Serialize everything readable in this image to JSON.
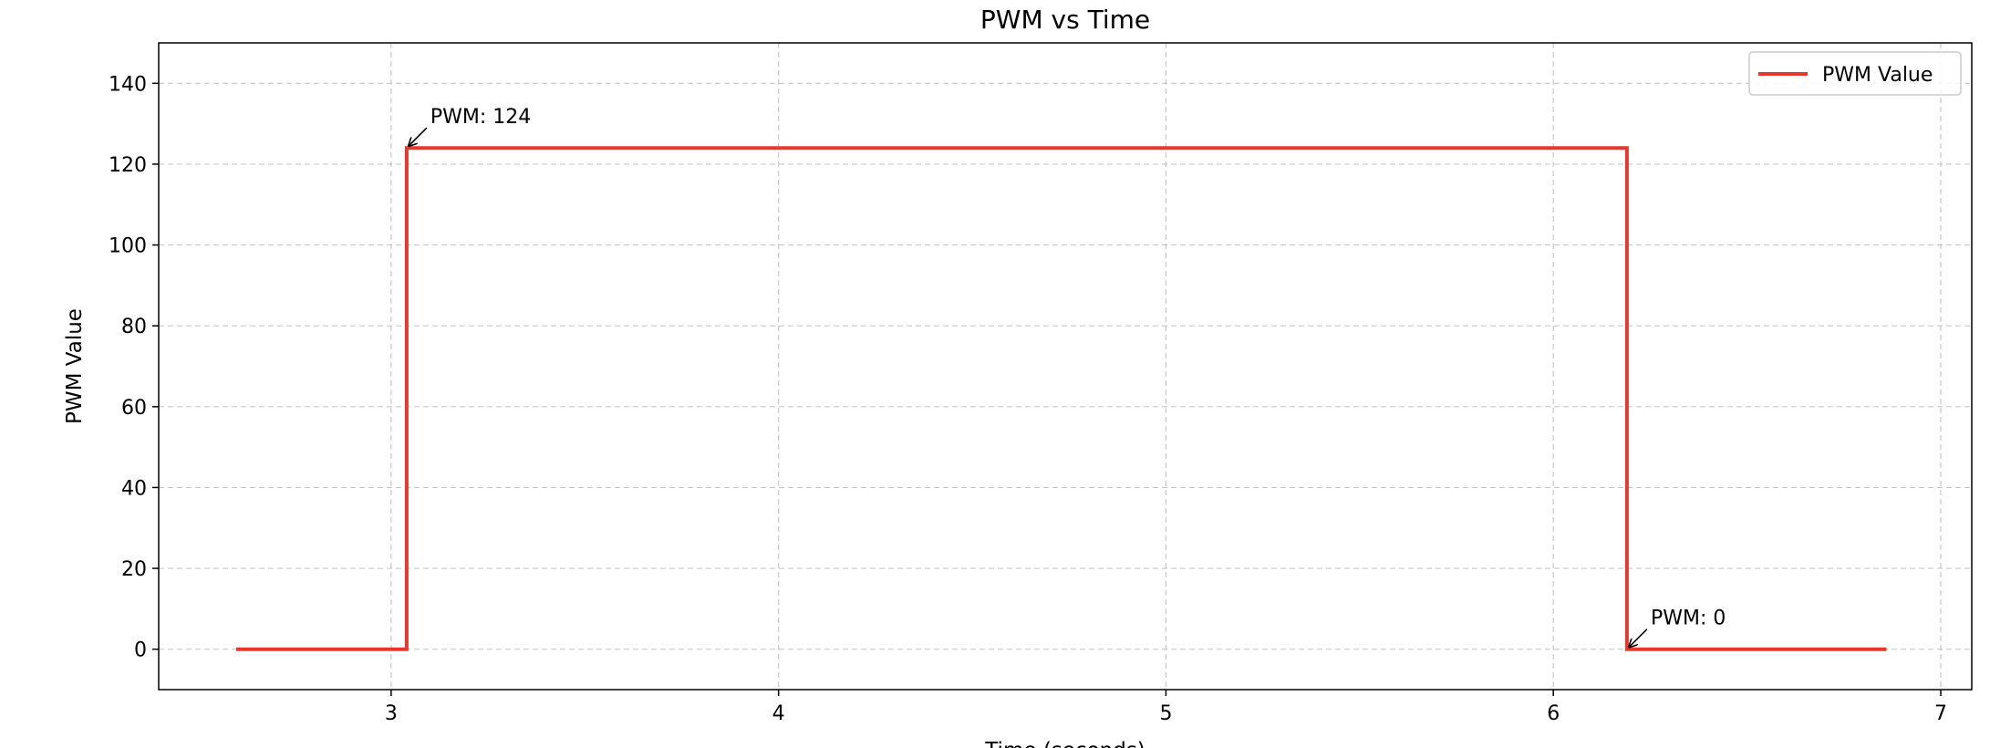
{
  "chart_data": {
    "type": "line",
    "title": "PWM vs Time",
    "xlabel": "Time (seconds)",
    "ylabel": "PWM Value",
    "xlim": [
      2.4,
      7.08
    ],
    "ylim": [
      -10,
      150
    ],
    "xticks": [
      3,
      4,
      5,
      6,
      7
    ],
    "yticks": [
      0,
      20,
      40,
      60,
      80,
      100,
      120,
      140
    ],
    "grid": true,
    "grid_style": "dashed",
    "legend_position": "top-right",
    "series": [
      {
        "name": "PWM Value",
        "color": "#e8382b",
        "step": true,
        "points": [
          {
            "x": 2.6,
            "y": 0
          },
          {
            "x": 3.04,
            "y": 0
          },
          {
            "x": 3.04,
            "y": 124
          },
          {
            "x": 6.19,
            "y": 124
          },
          {
            "x": 6.19,
            "y": 0
          },
          {
            "x": 6.86,
            "y": 0
          }
        ]
      }
    ],
    "annotations": [
      {
        "text": "PWM: 124",
        "x": 3.04,
        "y": 124
      },
      {
        "text": "PWM: 0",
        "x": 6.19,
        "y": 0
      }
    ]
  }
}
